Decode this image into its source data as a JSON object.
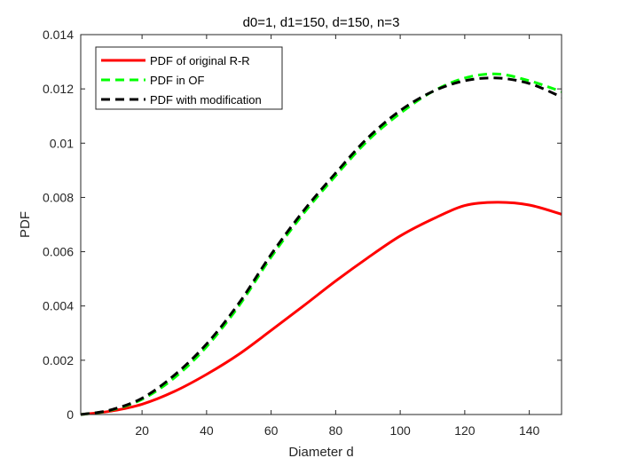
{
  "chart_data": {
    "type": "line",
    "title": "d0=1, d1=150, d=150, n=3",
    "xlabel": "Diameter d",
    "ylabel": "PDF",
    "xlim": [
      1,
      150
    ],
    "ylim": [
      0,
      0.014
    ],
    "xticks": [
      20,
      40,
      60,
      80,
      100,
      120,
      140
    ],
    "yticks": [
      0,
      0.002,
      0.004,
      0.006,
      0.008,
      0.01,
      0.012,
      0.014
    ],
    "ytick_labels": [
      "0",
      "0.002",
      "0.004",
      "0.006",
      "0.008",
      "0.01",
      "0.012",
      "0.014"
    ],
    "xtick_labels": [
      "20",
      "40",
      "60",
      "80",
      "100",
      "120",
      "140"
    ],
    "grid": false,
    "legend_position": "top-left",
    "series": [
      {
        "name": "PDF of original R-R",
        "color": "#ff0000",
        "dash": "solid",
        "x": [
          1,
          10,
          20,
          30,
          40,
          50,
          60,
          70,
          80,
          90,
          100,
          110,
          120,
          130,
          140,
          150
        ],
        "y": [
          0,
          0.00012,
          0.00038,
          0.00085,
          0.00148,
          0.00222,
          0.0031,
          0.004,
          0.00492,
          0.00578,
          0.00658,
          0.0072,
          0.0077,
          0.00782,
          0.00772,
          0.00738
        ]
      },
      {
        "name": "PDF in OF",
        "color": "#00ff00",
        "dash": "dashed",
        "x": [
          1,
          10,
          20,
          30,
          40,
          50,
          60,
          70,
          80,
          90,
          100,
          110,
          120,
          130,
          140,
          150
        ],
        "y": [
          0,
          0.00015,
          0.00056,
          0.00135,
          0.0025,
          0.004,
          0.0058,
          0.0074,
          0.0088,
          0.0101,
          0.0111,
          0.0119,
          0.0124,
          0.01255,
          0.0123,
          0.0119
        ]
      },
      {
        "name": "PDF with modification",
        "color": "#000000",
        "dash": "dashed",
        "x": [
          1,
          10,
          20,
          30,
          40,
          50,
          60,
          70,
          80,
          90,
          100,
          110,
          120,
          130,
          140,
          150
        ],
        "y": [
          0,
          0.00016,
          0.0006,
          0.00145,
          0.0026,
          0.0041,
          0.0059,
          0.0075,
          0.0089,
          0.0102,
          0.0112,
          0.0119,
          0.0123,
          0.0124,
          0.0122,
          0.0117
        ]
      }
    ]
  }
}
